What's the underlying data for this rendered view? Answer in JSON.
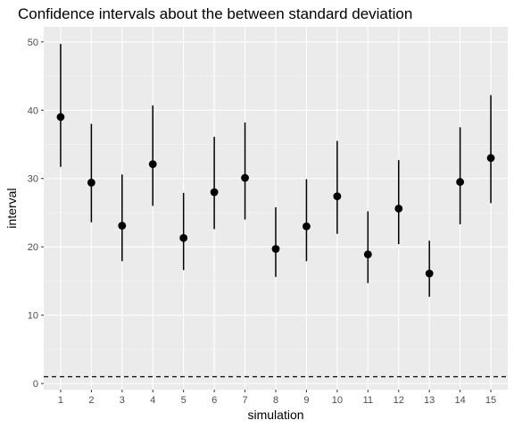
{
  "chart_data": {
    "type": "scatter",
    "title": "Confidence intervals about the between standard deviation",
    "xlabel": "simulation",
    "ylabel": "interval",
    "x": [
      1,
      2,
      3,
      4,
      5,
      6,
      7,
      8,
      9,
      10,
      11,
      12,
      13,
      14,
      15
    ],
    "x_tick_labels": [
      "1",
      "2",
      "3",
      "4",
      "5",
      "6",
      "7",
      "8",
      "9",
      "10",
      "11",
      "12",
      "13",
      "14",
      "15"
    ],
    "y": [
      39.0,
      29.4,
      23.1,
      32.1,
      21.3,
      28.0,
      30.1,
      19.7,
      23.0,
      27.4,
      18.9,
      25.6,
      16.1,
      29.5,
      33.0
    ],
    "lower": [
      31.7,
      23.6,
      17.9,
      26.0,
      16.6,
      22.6,
      24.0,
      15.6,
      17.9,
      21.9,
      14.7,
      20.4,
      12.7,
      23.3,
      26.4
    ],
    "upper": [
      49.7,
      38.0,
      30.6,
      40.7,
      27.9,
      36.1,
      38.2,
      25.8,
      29.9,
      35.5,
      25.2,
      32.7,
      20.9,
      37.5,
      42.2
    ],
    "y_ticks": [
      0,
      10,
      20,
      30,
      40,
      50
    ],
    "xlim": [
      0.45,
      15.55
    ],
    "ylim": [
      -0.9,
      52.2
    ],
    "reference_line": {
      "y": 1.0,
      "style": "dashed"
    },
    "grid": true,
    "colors": {
      "panel_background": "#ebebeb",
      "grid_major": "#ffffff",
      "points": "#000000",
      "error_bars": "#000000"
    }
  }
}
